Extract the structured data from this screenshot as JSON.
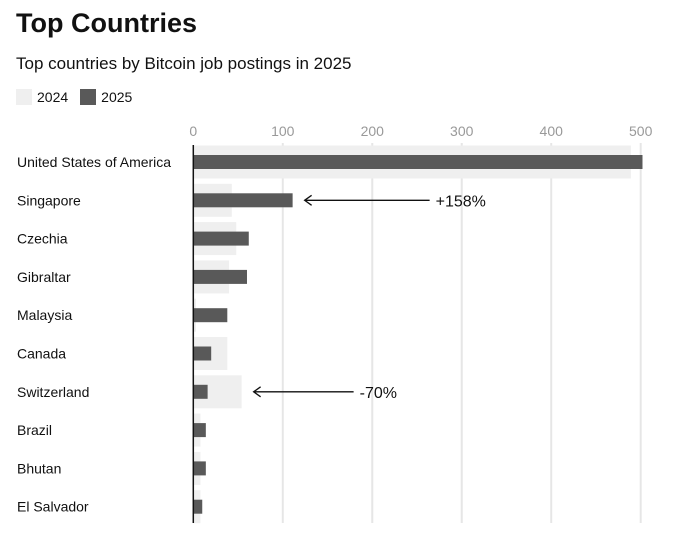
{
  "chart_data": {
    "type": "bar",
    "orientation": "horizontal",
    "title": "Top Countries",
    "subtitle": "Top countries by Bitcoin job postings in 2025",
    "categories": [
      "United States of America",
      "Singapore",
      "Czechia",
      "Gibraltar",
      "Malaysia",
      "Canada",
      "Switzerland",
      "Brazil",
      "Bhutan",
      "El Salvador"
    ],
    "series": [
      {
        "name": "2024",
        "color": "#efefef",
        "values": [
          489,
          43,
          48,
          40,
          3,
          38,
          54,
          8,
          8,
          8
        ]
      },
      {
        "name": "2025",
        "color": "#595959",
        "values": [
          502,
          111,
          62,
          60,
          38,
          20,
          16,
          14,
          14,
          10
        ]
      }
    ],
    "xlim": [
      0,
      500
    ],
    "xticks": [
      0,
      100,
      200,
      300,
      400,
      500
    ],
    "grid": true,
    "legend_position": "top-left",
    "annotations": [
      {
        "category": "Singapore",
        "text": "+158%"
      },
      {
        "category": "Switzerland",
        "text": "-70%"
      }
    ]
  }
}
